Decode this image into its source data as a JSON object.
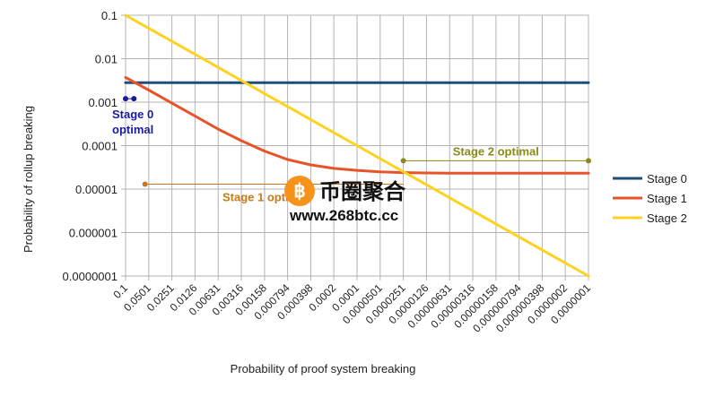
{
  "chart_data": {
    "type": "line",
    "title": "",
    "xlabel": "Probability of proof system breaking",
    "ylabel": "Probability of rollup breaking",
    "x_scale": "log-reversed",
    "y_scale": "log",
    "ylim": [
      1e-07,
      0.1
    ],
    "grid": true,
    "legend_position": "right",
    "y_ticks": [
      "0.1",
      "0.01",
      "0.001",
      "0.0001",
      "0.00001",
      "0.000001",
      "0.0000001"
    ],
    "y_tick_values": [
      0.1,
      0.01,
      0.001,
      0.0001,
      1e-05,
      1e-06,
      1e-07
    ],
    "x_ticks": [
      "0.1",
      "0.0501",
      "0.0251",
      "0.0126",
      "0.00631",
      "0.00316",
      "0.00158",
      "0.000794",
      "0.000398",
      "0.0002",
      "0.0001",
      "0.0000501",
      "0.0000251",
      "0.0000126",
      "0.00000631",
      "0.00000316",
      "0.00000158",
      "0.000000794",
      "0.000000398",
      "0.0000002",
      "0.0000001"
    ],
    "x": [
      0.1,
      0.0501,
      0.0251,
      0.0126,
      0.00631,
      0.00316,
      0.00158,
      0.000794,
      0.000398,
      0.0002,
      0.0001,
      5.01e-05,
      2.51e-05,
      1.26e-05,
      6.31e-06,
      3.16e-06,
      1.58e-06,
      7.94e-07,
      3.98e-07,
      2e-07,
      1e-07
    ],
    "series": [
      {
        "name": "Stage 0",
        "color": "#1f4e79",
        "values": [
          0.0028,
          0.0028,
          0.0028,
          0.0028,
          0.0028,
          0.0028,
          0.0028,
          0.0028,
          0.0028,
          0.0028,
          0.0028,
          0.0028,
          0.0028,
          0.0028,
          0.0028,
          0.0028,
          0.0028,
          0.0028,
          0.0028,
          0.0028,
          0.0028
        ]
      },
      {
        "name": "Stage 1",
        "color": "#e8532a",
        "values": [
          0.0037,
          0.0019,
          0.00095,
          0.00048,
          0.00024,
          0.00013,
          7.5e-05,
          4.8e-05,
          3.6e-05,
          3e-05,
          2.7e-05,
          2.5e-05,
          2.4e-05,
          2.35e-05,
          2.33e-05,
          2.32e-05,
          2.32e-05,
          2.32e-05,
          2.32e-05,
          2.32e-05,
          2.32e-05
        ]
      },
      {
        "name": "Stage 2",
        "color": "#ffd21f",
        "values": [
          0.1,
          0.0501,
          0.0251,
          0.0126,
          0.00631,
          0.00316,
          0.00158,
          0.000794,
          0.000398,
          0.0002,
          0.0001,
          5.01e-05,
          2.51e-05,
          1.26e-05,
          6.31e-06,
          3.16e-06,
          1.58e-06,
          7.94e-07,
          3.98e-07,
          2e-07,
          1e-07
        ]
      }
    ],
    "annotations": [
      {
        "text_lines": [
          "Stage 0",
          "optimal"
        ],
        "color": "#1a1a9c",
        "y": 0.0012,
        "x_from": 0.1,
        "x_to": 0.078
      },
      {
        "text_lines": [
          "Stage 1 optimal"
        ],
        "color": "#c87a1a",
        "y": 1.3e-05,
        "x_from": 0.056,
        "x_to": 2.51e-05
      },
      {
        "text_lines": [
          "Stage 2 optimal"
        ],
        "color": "#8a8a1a",
        "y": 4.5e-05,
        "x_from": 2.51e-05,
        "x_to": 1e-07
      }
    ]
  },
  "watermark": {
    "icon": "bitcoin-icon",
    "glyph": "฿",
    "text": "币圈聚合",
    "url": "www.268btc.cc",
    "accent": "#f7931a"
  }
}
